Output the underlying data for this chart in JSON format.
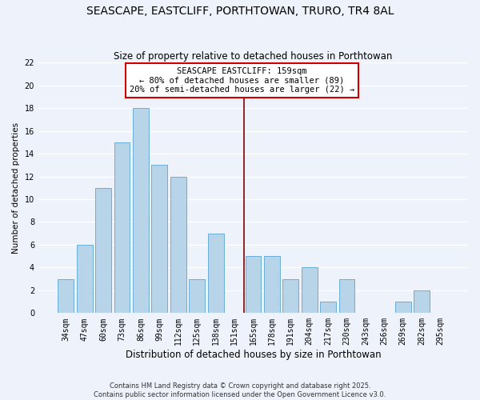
{
  "title": "SEASCAPE, EASTCLIFF, PORTHTOWAN, TRURO, TR4 8AL",
  "subtitle": "Size of property relative to detached houses in Porthtowan",
  "xlabel": "Distribution of detached houses by size in Porthtowan",
  "ylabel": "Number of detached properties",
  "bar_labels": [
    "34sqm",
    "47sqm",
    "60sqm",
    "73sqm",
    "86sqm",
    "99sqm",
    "112sqm",
    "125sqm",
    "138sqm",
    "151sqm",
    "165sqm",
    "178sqm",
    "191sqm",
    "204sqm",
    "217sqm",
    "230sqm",
    "243sqm",
    "256sqm",
    "269sqm",
    "282sqm",
    "295sqm"
  ],
  "bar_values": [
    3,
    6,
    11,
    15,
    18,
    13,
    12,
    3,
    7,
    0,
    5,
    5,
    3,
    4,
    1,
    3,
    0,
    0,
    1,
    2,
    0
  ],
  "bar_color": "#b8d4e8",
  "bar_edge_color": "#6aaed6",
  "background_color": "#eef2fb",
  "grid_color": "#ffffff",
  "annotation_line1": "SEASCAPE EASTCLIFF: 159sqm",
  "annotation_line2": "← 80% of detached houses are smaller (89)",
  "annotation_line3": "20% of semi-detached houses are larger (22) →",
  "annotation_box_color": "#ffffff",
  "annotation_box_edge_color": "#cc0000",
  "vline_color": "#800000",
  "ylim": [
    0,
    22
  ],
  "yticks": [
    0,
    2,
    4,
    6,
    8,
    10,
    12,
    14,
    16,
    18,
    20,
    22
  ],
  "footnote1": "Contains HM Land Registry data © Crown copyright and database right 2025.",
  "footnote2": "Contains public sector information licensed under the Open Government Licence v3.0.",
  "title_fontsize": 10,
  "subtitle_fontsize": 8.5,
  "xlabel_fontsize": 8.5,
  "ylabel_fontsize": 7.5,
  "tick_fontsize": 7,
  "annotation_fontsize": 7.5,
  "footnote_fontsize": 6
}
